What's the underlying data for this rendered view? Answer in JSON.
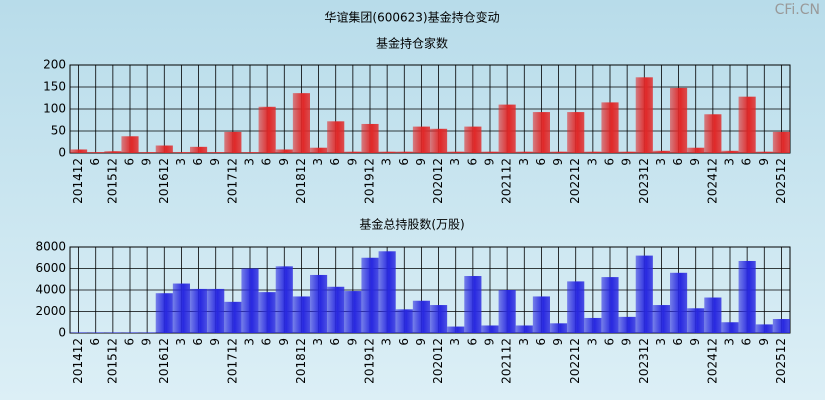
{
  "title": "华谊集团(600623)基金持仓变动",
  "watermark": "CFi.CN",
  "chart_data": [
    {
      "type": "bar",
      "title": "基金持仓家数",
      "color": "#e02828",
      "categories": [
        "201412",
        "6",
        "201512",
        "6",
        "9",
        "201612",
        "3",
        "6",
        "9",
        "201712",
        "3",
        "6",
        "9",
        "201812",
        "3",
        "6",
        "9",
        "201912",
        "3",
        "6",
        "9",
        "202012",
        "3",
        "6",
        "9",
        "202112",
        "3",
        "6",
        "9",
        "202212",
        "3",
        "6",
        "9",
        "202312",
        "3",
        "6",
        "9",
        "202412",
        "3",
        "6",
        "9",
        "202512"
      ],
      "values": [
        8,
        2,
        4,
        38,
        2,
        17,
        2,
        14,
        2,
        48,
        2,
        105,
        8,
        136,
        12,
        72,
        3,
        66,
        3,
        3,
        60,
        55,
        3,
        60,
        3,
        110,
        3,
        93,
        3,
        93,
        3,
        115,
        3,
        172,
        5,
        148,
        12,
        88,
        5,
        128,
        3,
        48
      ],
      "ylim": [
        0,
        200
      ],
      "yticks": [
        0,
        50,
        100,
        150,
        200
      ],
      "grid": true
    },
    {
      "type": "bar",
      "title": "基金总持股数(万股)",
      "color": "#2828e0",
      "categories": [
        "201412",
        "6",
        "201512",
        "6",
        "9",
        "201612",
        "3",
        "6",
        "9",
        "201712",
        "3",
        "6",
        "9",
        "201812",
        "3",
        "6",
        "9",
        "201912",
        "3",
        "6",
        "9",
        "202012",
        "3",
        "6",
        "9",
        "202112",
        "3",
        "6",
        "9",
        "202212",
        "3",
        "6",
        "9",
        "202312",
        "3",
        "6",
        "9",
        "202412",
        "3",
        "6",
        "9",
        "202512"
      ],
      "values": [
        50,
        50,
        50,
        50,
        50,
        3700,
        4600,
        4100,
        4100,
        2900,
        6000,
        3800,
        6200,
        3400,
        5400,
        4300,
        3900,
        7000,
        7600,
        2200,
        3000,
        2600,
        600,
        5300,
        700,
        4000,
        700,
        3400,
        900,
        4800,
        1400,
        5200,
        1500,
        7200,
        2600,
        5600,
        2300,
        3300,
        1000,
        6700,
        800,
        1300
      ],
      "ylim": [
        0,
        8000
      ],
      "yticks": [
        0,
        2000,
        4000,
        6000,
        8000
      ],
      "grid": true
    }
  ]
}
